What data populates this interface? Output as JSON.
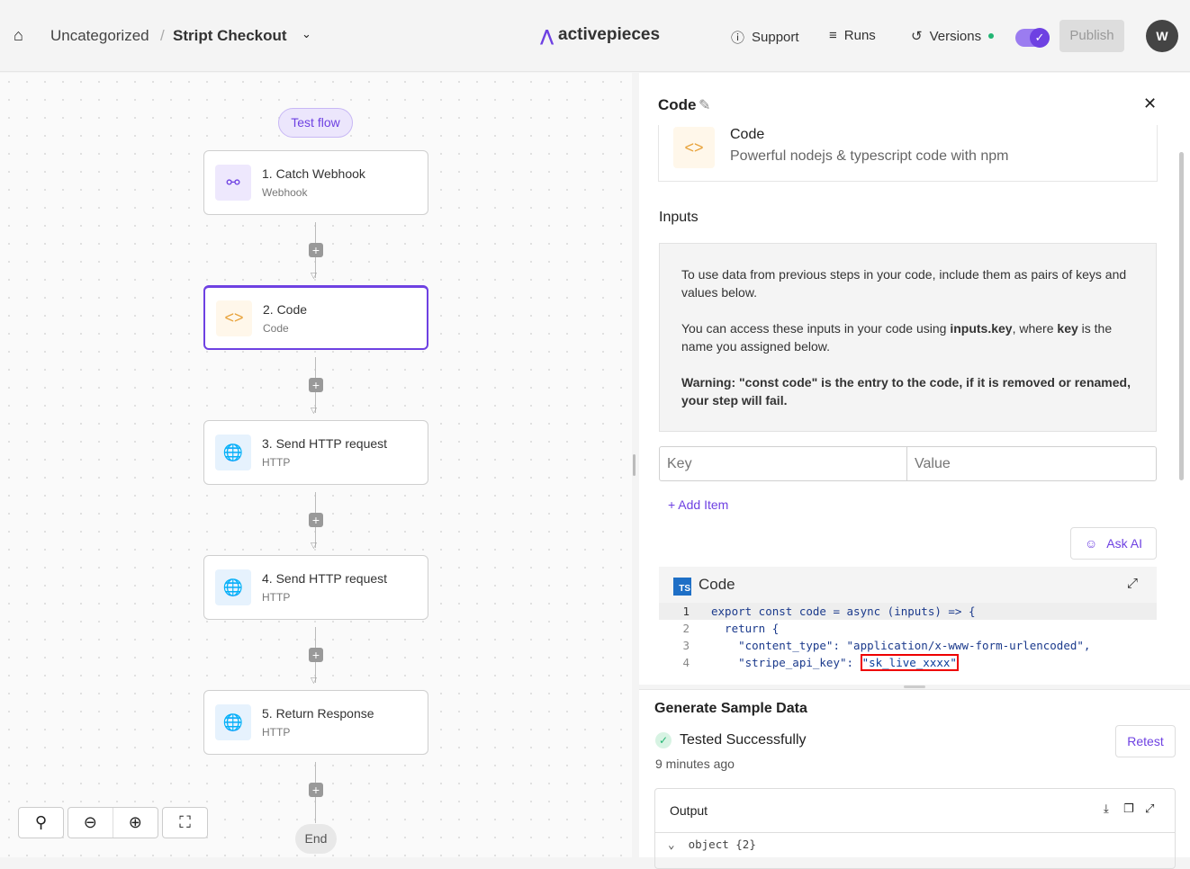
{
  "header": {
    "breadcrumb_folder": "Uncategorized",
    "separator": "/",
    "flow_name": "Stript Checkout",
    "logo": "activepieces",
    "support": "Support",
    "runs": "Runs",
    "versions": "Versions",
    "publish": "Publish",
    "avatar": "W",
    "brand_color": "#6e41e2"
  },
  "canvas": {
    "test_flow": "Test flow",
    "end": "End",
    "steps": [
      {
        "title": "1. Catch Webhook",
        "subtitle": "Webhook",
        "icon": "webhook-icon"
      },
      {
        "title": "2. Code",
        "subtitle": "Code",
        "icon": "code-icon"
      },
      {
        "title": "3. Send HTTP request",
        "subtitle": "HTTP",
        "icon": "globe-icon"
      },
      {
        "title": "4. Send HTTP request",
        "subtitle": "HTTP",
        "icon": "globe-icon"
      },
      {
        "title": "5. Return Response",
        "subtitle": "HTTP",
        "icon": "globe-icon"
      }
    ]
  },
  "panel": {
    "title": "Code",
    "piece_name": "Code",
    "piece_desc": "Powerful nodejs & typescript code with npm",
    "inputs_label": "Inputs",
    "info1": "To use data from previous steps in your code, include them as pairs of keys and values below.",
    "info2a": "You can access these inputs in your code using ",
    "info2b": "inputs.key",
    "info2c": ", where ",
    "info2d": "key",
    "info2e": " is the name you assigned below.",
    "info3a": "Warning: ",
    "info3b": "\"const code\" is the entry to the code, if it is removed or renamed, your step will fail.",
    "key_placeholder": "Key",
    "value_placeholder": "Value",
    "add_item": "+ Add Item",
    "ask_ai": "Ask AI",
    "code_label": "Code",
    "ts": "TS",
    "code_lines": [
      {
        "n": "1",
        "a": "export const code = async (inputs) => {"
      },
      {
        "n": "2",
        "a": "  return {"
      },
      {
        "n": "3",
        "a": "    \"content_type\": \"application/x-www-form-urlencoded\","
      },
      {
        "n": "4",
        "a": "    \"stripe_api_key\": ",
        "b": "\"sk_live_xxxx\""
      }
    ]
  },
  "sample": {
    "title": "Generate Sample Data",
    "status": "Tested Successfully",
    "time": "9 minutes ago",
    "retest": "Retest",
    "output": "Output",
    "object": "object {2}"
  }
}
